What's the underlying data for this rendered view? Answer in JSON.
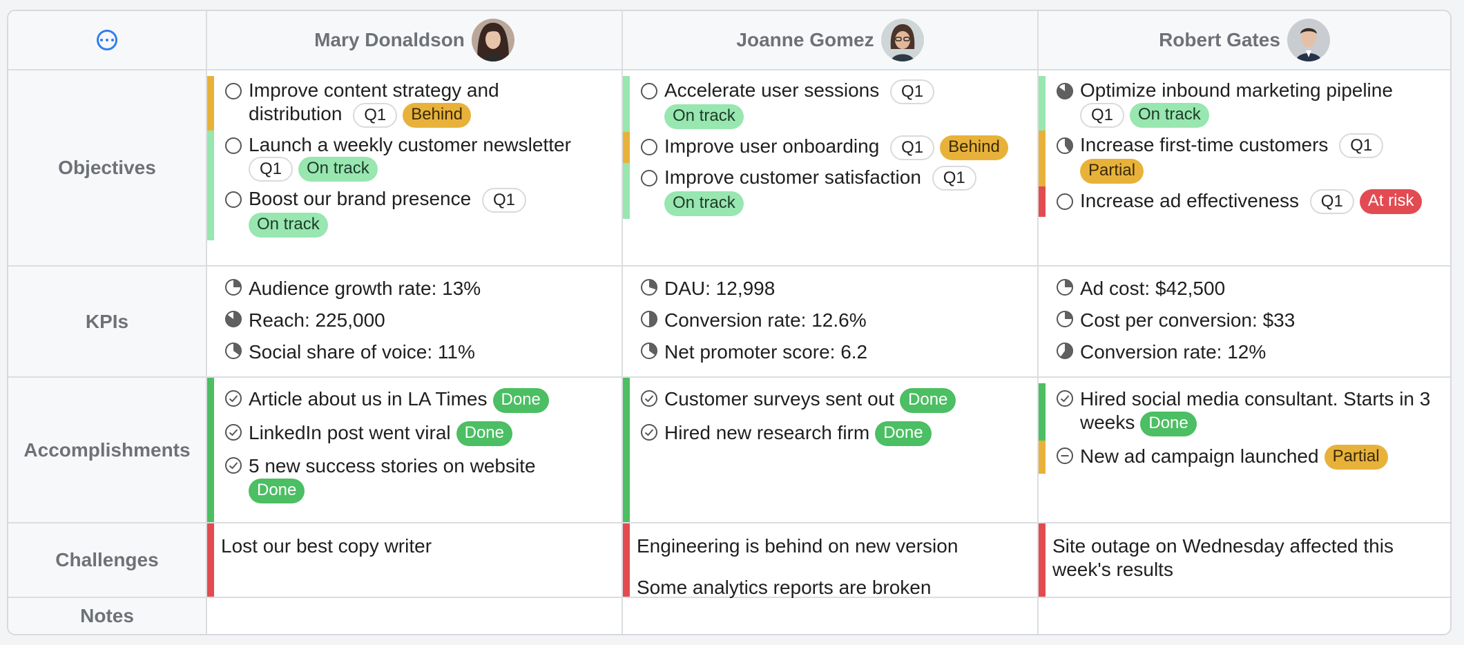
{
  "colors": {
    "ontrack_bg": "#98e6b0",
    "ontrack_text": "#1e3a28",
    "behind_bg": "#e8b23a",
    "behind_text": "#3a2a08",
    "done_bg": "#4cbe63",
    "done_text": "#ffffff",
    "partial_bg": "#e8b23a",
    "partial_text": "#3a2a08",
    "atrisk_bg": "#e24b52",
    "atrisk_text": "#ffffff",
    "bar_green_light": "#98e6b0",
    "bar_yellow": "#e8b23a",
    "bar_red": "#e24b52",
    "bar_green": "#4cbe63"
  },
  "rows": {
    "objectives": "Objectives",
    "kpis": "KPIs",
    "accomplishments": "Accomplishments",
    "challenges": "Challenges",
    "notes": "Notes"
  },
  "people": [
    {
      "name": "Mary Donaldson",
      "objectives": [
        {
          "lines": [
            "Improve content strategy and",
            "distribution"
          ],
          "quarter": "Q1",
          "status": "Behind",
          "kind": "behind"
        },
        {
          "lines": [
            "Launch a weekly customer newsletter"
          ],
          "quarter": "Q1",
          "status": "On track",
          "kind": "ontrack"
        },
        {
          "lines": [
            "Boost our brand presence"
          ],
          "quarter": "Q1",
          "status": "On track",
          "kind": "ontrack"
        }
      ],
      "kpis": [
        {
          "text": "Audience growth rate: 13%",
          "fill": 0.25
        },
        {
          "text": "Reach: 225,000",
          "fill": 0.85
        },
        {
          "text": "Social share of voice: 11%",
          "fill": 0.35
        }
      ],
      "accomplishments": [
        {
          "text": "Article about us in LA Times",
          "status": "Done",
          "kind": "done"
        },
        {
          "text": "LinkedIn post went viral",
          "status": "Done",
          "kind": "done"
        },
        {
          "text": "5 new success stories on website",
          "status": "Done",
          "kind": "done"
        }
      ],
      "challenges": [
        "Lost our best copy writer"
      ]
    },
    {
      "name": "Joanne Gomez",
      "objectives": [
        {
          "lines": [
            "Accelerate user sessions"
          ],
          "quarter": "Q1",
          "status": "On track",
          "kind": "ontrack"
        },
        {
          "lines": [
            "Improve user onboarding"
          ],
          "quarter": "Q1",
          "status": "Behind",
          "kind": "behind"
        },
        {
          "lines": [
            "Improve customer satisfaction"
          ],
          "quarter": "Q1",
          "status": "On track",
          "kind": "ontrack"
        }
      ],
      "kpis": [
        {
          "text": "DAU: 12,998",
          "fill": 0.3
        },
        {
          "text": "Conversion rate: 12.6%",
          "fill": 0.5
        },
        {
          "text": "Net promoter score: 6.2",
          "fill": 0.35
        }
      ],
      "accomplishments": [
        {
          "text": "Customer surveys sent out",
          "status": "Done",
          "kind": "done"
        },
        {
          "text": "Hired new research firm",
          "status": "Done",
          "kind": "done"
        }
      ],
      "challenges": [
        "Engineering is behind on new version",
        "Some analytics reports are broken"
      ]
    },
    {
      "name": "Robert Gates",
      "objectives": [
        {
          "lines": [
            "Optimize inbound marketing pipeline"
          ],
          "quarter": "Q1",
          "status": "On track",
          "kind": "ontrack",
          "fill": 0.85
        },
        {
          "lines": [
            "Increase first-time customers"
          ],
          "quarter": "Q1",
          "status": "Partial",
          "kind": "partial",
          "fill": 0.4
        },
        {
          "lines": [
            "Increase ad effectiveness"
          ],
          "quarter": "Q1",
          "status": "At risk",
          "kind": "atrisk"
        }
      ],
      "kpis": [
        {
          "text": "Ad cost: $42,500",
          "fill": 0.25
        },
        {
          "text": "Cost per conversion: $33",
          "fill": 0.25
        },
        {
          "text": "Conversion rate: 12%",
          "fill": 0.6
        }
      ],
      "accomplishments": [
        {
          "text": "Hired social media consultant. Starts in 3 weeks",
          "status": "Done",
          "kind": "done"
        },
        {
          "text": "New ad campaign launched",
          "status": "Partial",
          "kind": "partial",
          "icon": "minus"
        }
      ],
      "challenges": [
        "Site outage on Wednesday affected this week's results"
      ]
    }
  ]
}
